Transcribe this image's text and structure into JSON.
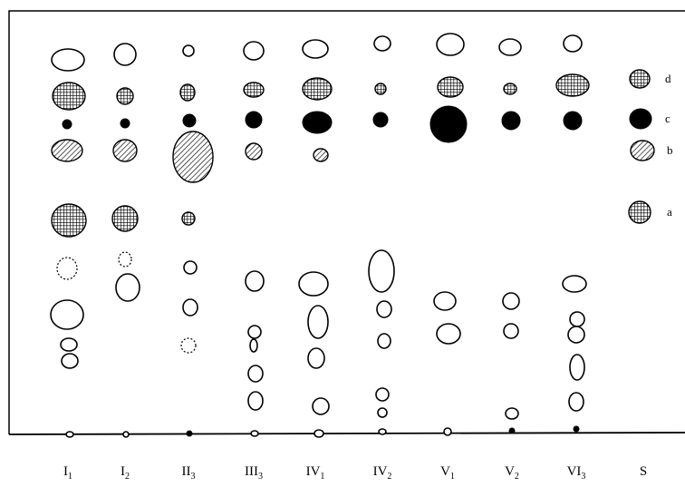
{
  "lanes": [
    {
      "numeral": "I",
      "subscript": "1"
    },
    {
      "numeral": "I",
      "subscript": "2"
    },
    {
      "numeral": "II",
      "subscript": "3"
    },
    {
      "numeral": "III",
      "subscript": "3"
    },
    {
      "numeral": "IV",
      "subscript": "1"
    },
    {
      "numeral": "IV",
      "subscript": "2"
    },
    {
      "numeral": "V",
      "subscript": "1"
    },
    {
      "numeral": "V",
      "subscript": "2"
    },
    {
      "numeral": "VI",
      "subscript": "3"
    },
    {
      "numeral": "S"
    }
  ],
  "spot_labels": [
    "d",
    "c",
    "b",
    "a"
  ]
}
